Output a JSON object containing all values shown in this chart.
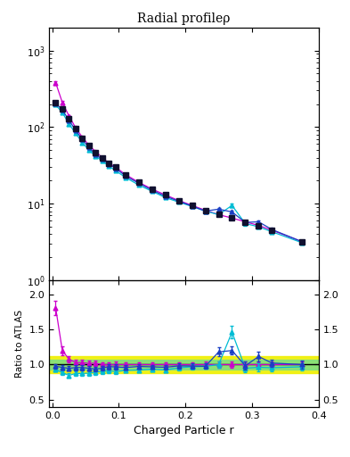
{
  "title": "Radial profileρ",
  "xlabel": "Charged Particle r",
  "ylabel_ratio": "Ratio to ATLAS",
  "x": [
    0.005,
    0.015,
    0.025,
    0.035,
    0.045,
    0.055,
    0.065,
    0.075,
    0.085,
    0.095,
    0.11,
    0.13,
    0.15,
    0.17,
    0.19,
    0.21,
    0.23,
    0.25,
    0.27,
    0.29,
    0.31,
    0.33,
    0.375
  ],
  "data_atlas": [
    210,
    175,
    130,
    95,
    72,
    57,
    47,
    40,
    34,
    30,
    24,
    19,
    15.5,
    13,
    11,
    9.5,
    8.2,
    7.2,
    6.5,
    5.8,
    5.2,
    4.5,
    3.2
  ],
  "data_atlas_err": [
    5,
    4,
    3,
    2.5,
    2,
    1.5,
    1.2,
    1.0,
    0.9,
    0.8,
    0.5,
    0.4,
    0.35,
    0.3,
    0.28,
    0.25,
    0.22,
    0.2,
    0.18,
    0.16,
    0.14,
    0.12,
    0.09
  ],
  "data_mc1": [
    205,
    168,
    123,
    91,
    69,
    54,
    44,
    38,
    33,
    29,
    23,
    18.5,
    15,
    12.5,
    10.8,
    9.3,
    8.0,
    8.5,
    7.8,
    5.7,
    5.8,
    4.6,
    3.2
  ],
  "data_mc1_err": [
    4,
    3.5,
    3,
    2.5,
    2,
    1.5,
    1.2,
    1.0,
    0.9,
    0.8,
    0.5,
    0.4,
    0.35,
    0.3,
    0.28,
    0.25,
    0.22,
    0.4,
    0.3,
    0.3,
    0.3,
    0.2,
    0.15
  ],
  "data_mc2": [
    195,
    155,
    110,
    83,
    63,
    50,
    42,
    36,
    31,
    27,
    22.0,
    17.5,
    14.5,
    12,
    10.5,
    9.2,
    8.0,
    7.2,
    9.5,
    5.5,
    5.0,
    4.3,
    3.1
  ],
  "data_mc2_err": [
    4,
    3.5,
    3,
    2.5,
    2,
    1.5,
    1.2,
    1.0,
    0.9,
    0.8,
    0.5,
    0.4,
    0.35,
    0.3,
    0.28,
    0.25,
    0.22,
    0.3,
    0.5,
    0.3,
    0.25,
    0.2,
    0.15
  ],
  "data_mc3": [
    380,
    210,
    140,
    98,
    74,
    58,
    48,
    40,
    34,
    30,
    24,
    19,
    15.5,
    13,
    11,
    9.5,
    8.2,
    7.2,
    6.5,
    5.8,
    5.2,
    4.5,
    3.2
  ],
  "data_mc3_err": [
    20,
    10,
    5,
    3,
    2,
    1.5,
    1.2,
    1.0,
    0.9,
    0.8,
    0.5,
    0.4,
    0.35,
    0.3,
    0.28,
    0.25,
    0.22,
    0.2,
    0.18,
    0.16,
    0.14,
    0.12,
    0.09
  ],
  "color_atlas": "#101030",
  "color_mc1": "#1a3fc4",
  "color_mc2": "#00bcd4",
  "color_mc3": "#cc00cc",
  "band_green": "#80e080",
  "band_yellow": "#f0f000",
  "ylim_main": [
    1,
    2000
  ],
  "ylim_ratio": [
    0.4,
    2.2
  ],
  "ratio_yticks": [
    0.5,
    1.0,
    1.5,
    2.0
  ],
  "xmin": -0.005,
  "xmax": 0.4
}
